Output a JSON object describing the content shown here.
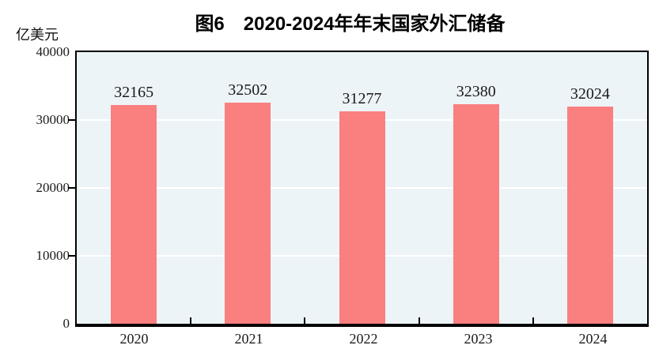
{
  "chart_data": {
    "type": "bar",
    "title": "图6　2020-2024年年末国家外汇储备",
    "ylabel": "亿美元",
    "xlabel": "",
    "categories": [
      "2020",
      "2021",
      "2022",
      "2023",
      "2024"
    ],
    "values": [
      32165,
      32502,
      31277,
      32380,
      32024
    ],
    "ylim": [
      0,
      40000
    ],
    "yticks": [
      0,
      10000,
      20000,
      30000,
      40000
    ],
    "grid": "horizontal",
    "legend": "none",
    "bar_color": "#fa7f7f",
    "plot_bg_color": "#edf4f8",
    "gridline_color": "#ffffff",
    "axis_color": "#000000",
    "label_color": "#1a1a1a"
  }
}
